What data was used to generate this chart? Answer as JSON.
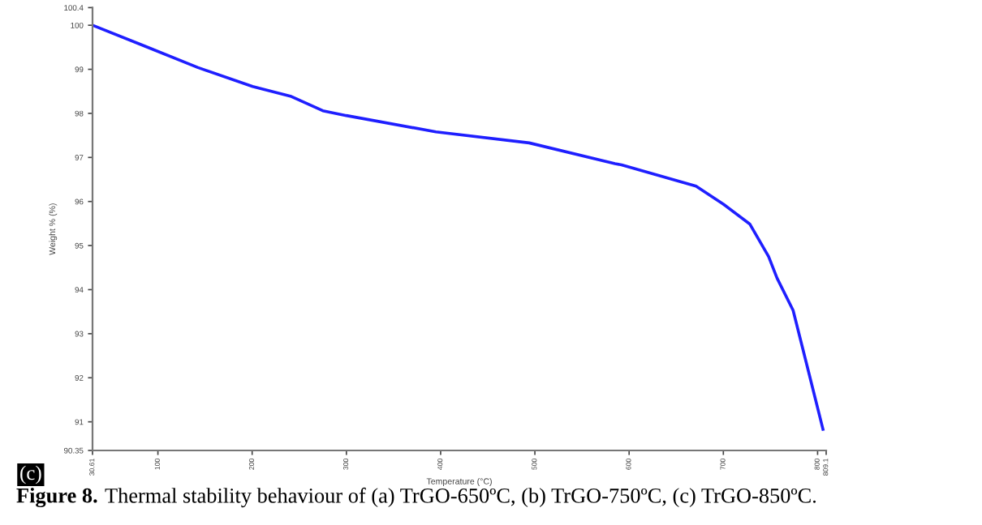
{
  "chart_data": {
    "type": "line",
    "xlabel": "Temperature (°C)",
    "ylabel": "Weight % (%)",
    "x": [
      30.61,
      85.7,
      142.5,
      200.5,
      240.6,
      275,
      300,
      395,
      494,
      585,
      592,
      671,
      700,
      728,
      748,
      757,
      774,
      788.5,
      805.7
    ],
    "series": [
      {
        "color": "#1f1fff",
        "values": [
          100.0,
          99.53,
          99.04,
          98.61,
          98.39,
          98.06,
          97.95,
          97.58,
          97.33,
          96.86,
          96.83,
          96.35,
          95.94,
          95.49,
          94.75,
          94.26,
          93.53,
          92.3,
          90.83
        ]
      }
    ],
    "xlim": [
      30.61,
      809.1
    ],
    "xticks": [
      30.61,
      100,
      200,
      300,
      400,
      500,
      600,
      700,
      800,
      809.1
    ],
    "ylim": [
      90.35,
      100.4
    ],
    "yticks": [
      90.35,
      91,
      92,
      93,
      94,
      95,
      96,
      97,
      98,
      99,
      100,
      100.4
    ],
    "grid": false,
    "legend": false,
    "marker": "none",
    "line_style": "solid",
    "annotations": [
      "(c)",
      "Figure 8.",
      "Thermal stability behaviour of (a) TrGO-650ºC, (b) TrGO-750ºC, (c) TrGO-850ºC."
    ]
  }
}
